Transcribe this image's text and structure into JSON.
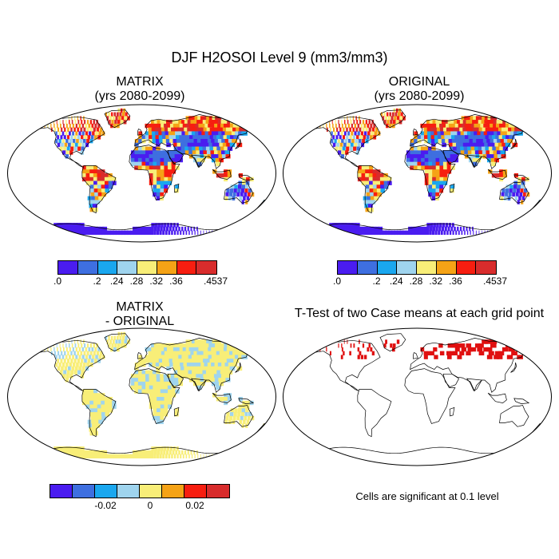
{
  "title": "DJF H2OSOI Level 9 (mm3/mm3)",
  "panels": {
    "matrix": {
      "title_line1": "MATRIX",
      "title_line2": "(yrs 2080-2099)"
    },
    "original": {
      "title_line1": "ORIGINAL",
      "title_line2": "(yrs 2080-2099)"
    },
    "diff": {
      "title_line1": "MATRIX",
      "title_line2": "- ORIGINAL"
    },
    "ttest": {
      "title": "T-Test of two Case means at each grid point",
      "note": "Cells are significant at 0.1 level"
    }
  },
  "colorbar_abs": {
    "colors": [
      "#4a1cf0",
      "#3e6fe0",
      "#1aa7ef",
      "#9fd4ee",
      "#f8ee78",
      "#f5a316",
      "#f71e10",
      "#d82c2c"
    ],
    "tick_labels": [
      ".0",
      ".2",
      ".24",
      ".28",
      ".32",
      ".36",
      ".4537"
    ],
    "tick_positions": [
      0,
      2,
      3,
      4,
      5,
      6,
      8
    ]
  },
  "colorbar_diff": {
    "colors": [
      "#4a1cf0",
      "#3e6fe0",
      "#1aa7ef",
      "#9fd4ee",
      "#f8ee78",
      "#f5a316",
      "#f71e10",
      "#d82c2c"
    ],
    "tick_labels": [
      "-0.02",
      "0",
      "0.02"
    ],
    "tick_positions": [
      2.5,
      4.5,
      6.5
    ]
  },
  "palette": {
    "ocean": "#ffffff",
    "land_outline": "#000000",
    "significant": "#e01010"
  }
}
